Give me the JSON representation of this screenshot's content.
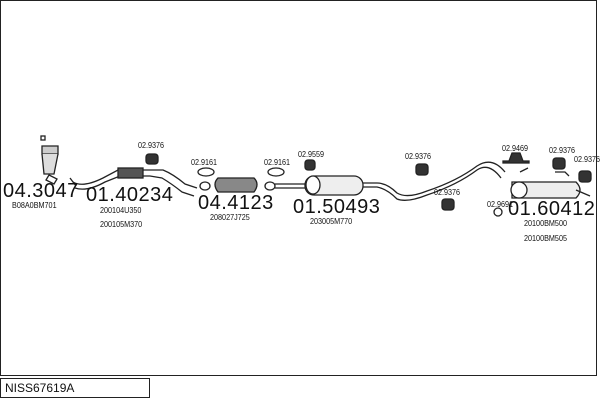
{
  "diagram_ref": "NISS67619A",
  "parts": [
    {
      "number": "04.3047",
      "oem": [
        "B08A0BM701"
      ]
    },
    {
      "number": "01.40234",
      "oem": [
        "200104U350",
        "200105M370"
      ]
    },
    {
      "number": "04.4123",
      "oem": [
        "208027J725"
      ]
    },
    {
      "number": "01.50493",
      "oem": [
        "203005M770"
      ]
    },
    {
      "number": "01.60412",
      "oem": [
        "20100BM500",
        "20100BM505"
      ]
    }
  ],
  "accessories": [
    "02.9376",
    "02.9161",
    "02.9161",
    "02.9559",
    "02.9376",
    "02.9376",
    "02.9469",
    "02.9376",
    "02.9376",
    "02.9691"
  ]
}
